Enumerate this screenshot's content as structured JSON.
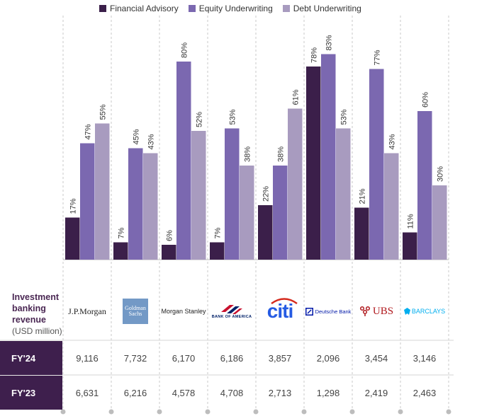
{
  "legend": [
    {
      "label": "Financial Advisory",
      "color": "#3b1f4a"
    },
    {
      "label": "Equity Underwriting",
      "color": "#7b68b0"
    },
    {
      "label": "Debt Underwriting",
      "color": "#a89bbf"
    }
  ],
  "chart_data": {
    "type": "bar",
    "categories": [
      "J.P.Morgan",
      "Goldman Sachs",
      "Morgan Stanley",
      "Bank of America",
      "citi",
      "Deutsche Bank",
      "UBS",
      "Barclays"
    ],
    "series": [
      {
        "name": "Financial Advisory",
        "values": [
          17,
          7,
          6,
          7,
          22,
          78,
          21,
          11
        ],
        "labels": [
          "17%",
          "7%",
          "6%",
          "7%",
          "22%",
          "78%",
          "21%",
          "11%"
        ]
      },
      {
        "name": "Equity Underwriting",
        "values": [
          47,
          45,
          80,
          53,
          38,
          83,
          77,
          60
        ],
        "labels": [
          "47%",
          "45%",
          "80%",
          "53%",
          "38%",
          "83%",
          "77%",
          "60%"
        ]
      },
      {
        "name": "Debt Underwriting",
        "values": [
          55,
          43,
          52,
          38,
          61,
          53,
          43,
          30
        ],
        "labels": [
          "55%",
          "43%",
          "52%",
          "38%",
          "61%",
          "53%",
          "43%",
          "30%"
        ]
      }
    ],
    "ylim": [
      0,
      100
    ],
    "grid": false,
    "legend_position": "top"
  },
  "table": {
    "label_line1": "Investment",
    "label_line2": "banking",
    "label_line3": "revenue",
    "label_line4": "(USD million)",
    "logos": {
      "jpm": "J.P.Morgan",
      "gs_line1": "Goldman",
      "gs_line2": "Sachs",
      "ms": "Morgan Stanley",
      "bofa": "BANK OF AMERICA",
      "citi": "citi",
      "db": "Deutsche Bank",
      "ubs": "UBS",
      "barclays": "BARCLAYS"
    },
    "rows": [
      {
        "label": "FY'24",
        "values": [
          "9,116",
          "7,732",
          "6,170",
          "6,186",
          "3,857",
          "2,096",
          "3,454",
          "3,146"
        ]
      },
      {
        "label": "FY'23",
        "values": [
          "6,631",
          "6,216",
          "4,578",
          "4,708",
          "2,713",
          "1,298",
          "2,419",
          "2,463"
        ]
      }
    ]
  }
}
